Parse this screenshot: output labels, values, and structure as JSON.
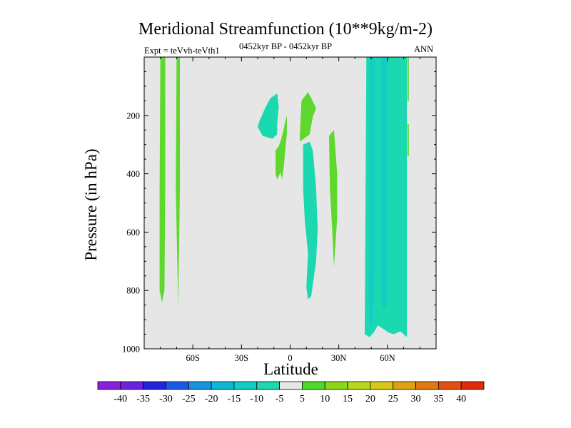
{
  "chart_data": {
    "type": "contour",
    "title": "Meridional Streamfunction (10**9kg/m-2)",
    "subtitle_left": "Expt = teVvh-teVth1",
    "subtitle_center": "0452kyr BP - 0452kyr BP",
    "subtitle_right": "ANN",
    "xlabel": "Latitude",
    "ylabel": "Pressure (in hPa)",
    "xlim": [
      -90,
      90
    ],
    "ylim": [
      1000,
      0
    ],
    "x_ticks": [
      -60,
      -30,
      0,
      30,
      60
    ],
    "x_tick_labels": [
      "60S",
      "30S",
      "0",
      "30N",
      "60N"
    ],
    "y_ticks": [
      200,
      400,
      600,
      800,
      1000
    ],
    "y_tick_labels": [
      "200",
      "400",
      "600",
      "800",
      "1000"
    ],
    "background_color": "#e6e6e6",
    "colorbar": {
      "labels": [
        "-40",
        "-35",
        "-30",
        "-25",
        "-20",
        "-15",
        "-10",
        "-5",
        "5",
        "10",
        "15",
        "20",
        "25",
        "30",
        "35",
        "40"
      ],
      "colors": [
        "#8a20d8",
        "#6a22e0",
        "#2424d8",
        "#1e5ae0",
        "#1a92e0",
        "#10b6d8",
        "#10cec6",
        "#1cd8b0",
        "#e6e6e6",
        "#50d82c",
        "#8ad81c",
        "#b8d81c",
        "#d8c81c",
        "#e0a014",
        "#e07814",
        "#e05010",
        "#e02a0a"
      ]
    },
    "regions": [
      {
        "level": "5 to 10",
        "color": "#5ed82c",
        "points": [
          [
            -80,
            0
          ],
          [
            -77,
            0
          ],
          [
            -77,
            450
          ],
          [
            -77.5,
            800
          ],
          [
            -79,
            840
          ],
          [
            -80.5,
            800
          ],
          [
            -80.5,
            450
          ]
        ]
      },
      {
        "level": "5 to 10",
        "color": "#5ed82c",
        "points": [
          [
            -70,
            0
          ],
          [
            -68,
            0
          ],
          [
            -68,
            450
          ],
          [
            -69,
            860
          ],
          [
            -70.5,
            450
          ]
        ]
      },
      {
        "level": "-5 to -10",
        "color": "#1cd8b0",
        "points": [
          [
            -19,
            220
          ],
          [
            -15,
            170
          ],
          [
            -12,
            140
          ],
          [
            -8,
            125
          ],
          [
            -7,
            170
          ],
          [
            -8,
            230
          ],
          [
            -8,
            265
          ],
          [
            -11,
            280
          ],
          [
            -17,
            270
          ],
          [
            -20,
            240
          ]
        ]
      },
      {
        "level": "5 to 10",
        "color": "#5ed82c",
        "points": [
          [
            -6,
            290
          ],
          [
            -4,
            250
          ],
          [
            -3,
            220
          ],
          [
            -2,
            200
          ],
          [
            -2,
            260
          ],
          [
            -3,
            320
          ],
          [
            -4,
            380
          ],
          [
            -5,
            420
          ],
          [
            -6,
            395
          ],
          [
            -8,
            420
          ],
          [
            -9,
            400
          ],
          [
            -9,
            320
          ],
          [
            -7,
            305
          ]
        ]
      },
      {
        "level": "5 to 10",
        "color": "#5ed82c",
        "points": [
          [
            6,
            270
          ],
          [
            7,
            150
          ],
          [
            11,
            120
          ],
          [
            13,
            140
          ],
          [
            16,
            175
          ],
          [
            14,
            205
          ],
          [
            12,
            265
          ],
          [
            6,
            290
          ]
        ]
      },
      {
        "level": "-5 to -10",
        "color": "#1cd8b0",
        "points": [
          [
            8,
            300
          ],
          [
            12,
            290
          ],
          [
            14,
            320
          ],
          [
            16,
            450
          ],
          [
            17,
            590
          ],
          [
            16,
            700
          ],
          [
            14,
            780
          ],
          [
            13,
            820
          ],
          [
            11,
            830
          ],
          [
            10,
            790
          ],
          [
            11,
            670
          ],
          [
            9,
            560
          ],
          [
            8,
            450
          ]
        ]
      },
      {
        "level": "5 to 10",
        "color": "#5ed82c",
        "points": [
          [
            24,
            270
          ],
          [
            27,
            250
          ],
          [
            29,
            400
          ],
          [
            29,
            550
          ],
          [
            27,
            720
          ],
          [
            26,
            600
          ],
          [
            24.5,
            450
          ]
        ]
      },
      {
        "level": "-5 to -10",
        "color": "#1cd8b0",
        "points": [
          [
            47,
            0
          ],
          [
            72,
            0
          ],
          [
            72,
            960
          ],
          [
            68,
            940
          ],
          [
            64,
            950
          ],
          [
            61,
            945
          ],
          [
            57,
            930
          ],
          [
            54,
            920
          ],
          [
            52,
            940
          ],
          [
            49,
            960
          ],
          [
            46,
            950
          ]
        ]
      },
      {
        "level": "-10 to -15",
        "color": "#10cec6",
        "points": [
          [
            49,
            0
          ],
          [
            52,
            0
          ],
          [
            52,
            740
          ],
          [
            51,
            900
          ],
          [
            49.5,
            930
          ],
          [
            48.5,
            800
          ],
          [
            49,
            500
          ]
        ]
      },
      {
        "level": "-10 to -15",
        "color": "#10cec6",
        "points": [
          [
            56,
            0
          ],
          [
            60,
            0
          ],
          [
            60,
            810
          ],
          [
            59,
            860
          ],
          [
            57,
            860
          ],
          [
            56,
            810
          ]
        ]
      },
      {
        "level": "5 to 10",
        "color": "#5ed82c",
        "points": [
          [
            72.3,
            0
          ],
          [
            73.2,
            0
          ],
          [
            73.2,
            150
          ],
          [
            72.3,
            150
          ]
        ]
      },
      {
        "level": "5 to 10",
        "color": "#5ed82c",
        "points": [
          [
            72.3,
            230
          ],
          [
            73.2,
            230
          ],
          [
            73.2,
            340
          ],
          [
            72.3,
            340
          ]
        ]
      }
    ]
  }
}
